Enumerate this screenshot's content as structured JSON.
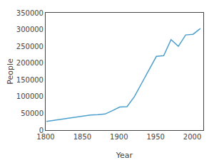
{
  "chart_data": {
    "type": "line",
    "x": [
      1801,
      1811,
      1821,
      1831,
      1841,
      1851,
      1861,
      1871,
      1881,
      1891,
      1901,
      1911,
      1921,
      1931,
      1951,
      1961,
      1971,
      1981,
      1991,
      2001,
      2011
    ],
    "values": [
      26000,
      29000,
      32000,
      35000,
      38000,
      42000,
      45000,
      46000,
      48000,
      58000,
      69000,
      70000,
      100000,
      140000,
      220000,
      222000,
      270000,
      250000,
      284000,
      286000,
      303000
    ],
    "color": "#4c9fcd",
    "xlabel": "Year",
    "ylabel": "People",
    "xlim": [
      1800,
      2015
    ],
    "ylim": [
      0,
      350000
    ],
    "xticks": [
      1800,
      1850,
      1900,
      1950,
      2000
    ],
    "yticks": [
      0,
      50000,
      100000,
      150000,
      200000,
      250000,
      300000,
      350000
    ],
    "grid": false
  }
}
